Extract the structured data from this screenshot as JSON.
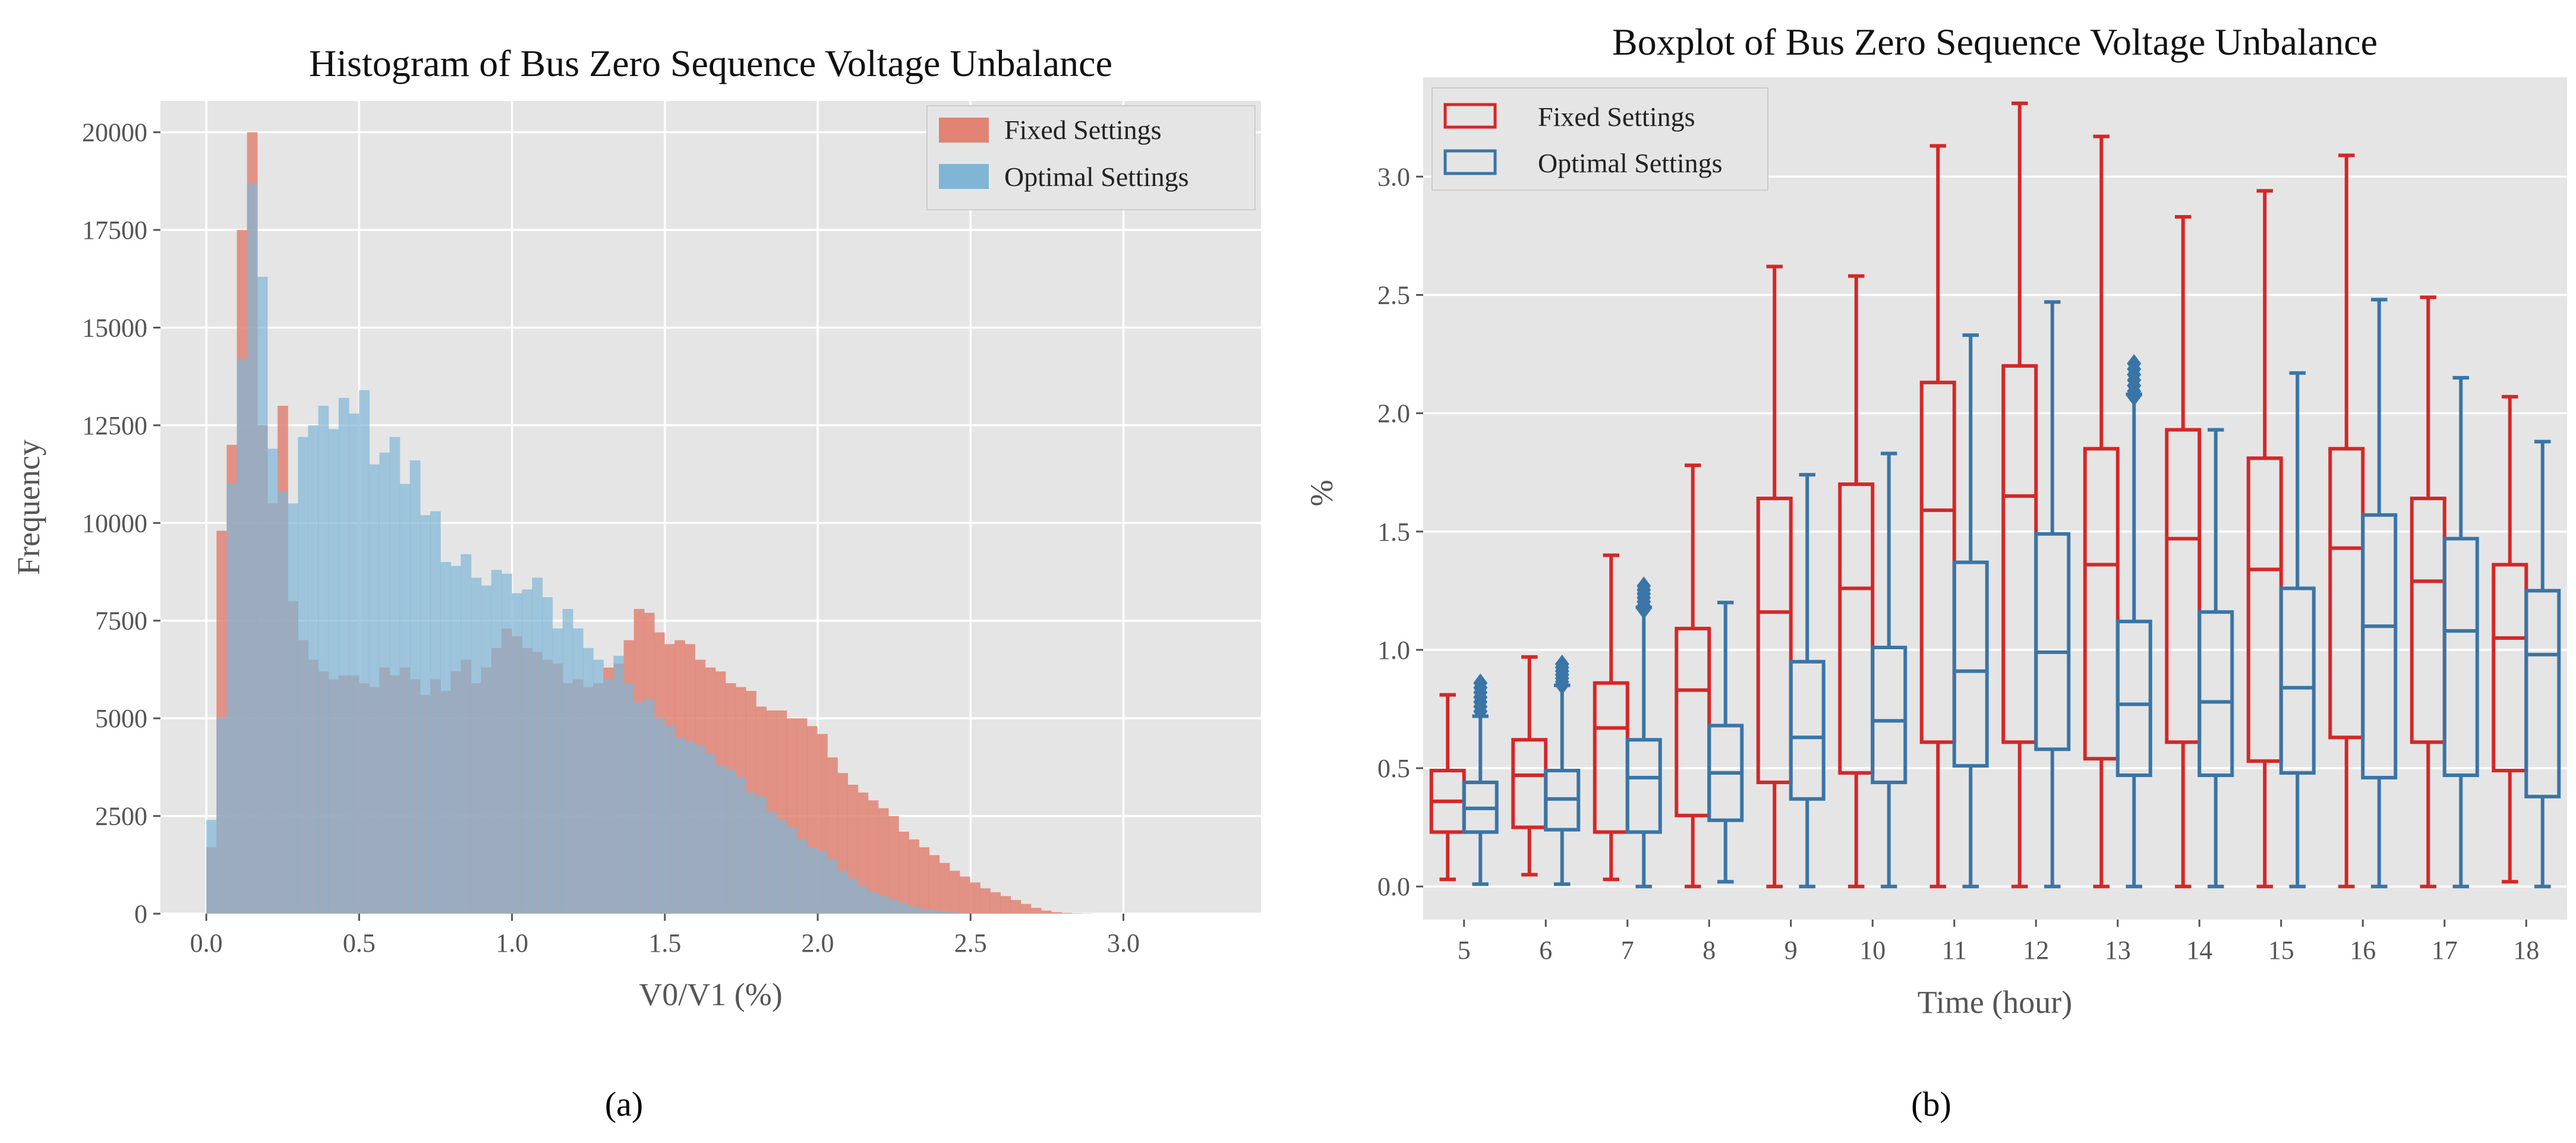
{
  "chart_data": [
    {
      "type": "histogram",
      "title": "Histogram of Bus Zero Sequence Voltage Unbalance",
      "xlabel": "V0/V1 (%)",
      "ylabel": "Frequency",
      "xlim": [
        -0.15,
        3.45
      ],
      "ylim": [
        0,
        20800
      ],
      "xticks": [
        "0.0",
        "0.5",
        "1.0",
        "1.5",
        "2.0",
        "2.5",
        "3.0"
      ],
      "yticks": [
        "0",
        "2500",
        "5000",
        "7500",
        "10000",
        "12500",
        "15000",
        "17500",
        "20000"
      ],
      "legend_position": "top-right",
      "bin_start": 0.0,
      "bin_width": 0.0333,
      "series": [
        {
          "name": "Fixed Settings",
          "color": "#e28474",
          "values": [
            1700,
            9800,
            12000,
            17500,
            20000,
            12500,
            10500,
            13000,
            8000,
            7000,
            6500,
            6200,
            6000,
            6100,
            6100,
            5900,
            5800,
            6300,
            6100,
            6300,
            6000,
            5600,
            6000,
            5700,
            6200,
            6500,
            5900,
            6300,
            6800,
            7300,
            7100,
            6800,
            6700,
            6500,
            6400,
            5900,
            6000,
            5800,
            5900,
            6300,
            6400,
            7000,
            7800,
            7700,
            7200,
            6900,
            7000,
            6900,
            6500,
            6300,
            6200,
            5900,
            5800,
            5700,
            5300,
            5200,
            5200,
            5000,
            5000,
            4800,
            4600,
            4000,
            3600,
            3300,
            3100,
            2900,
            2700,
            2500,
            2100,
            1900,
            1700,
            1500,
            1300,
            1100,
            950,
            800,
            650,
            550,
            450,
            350,
            250,
            150,
            80,
            40,
            20,
            10,
            5
          ]
        },
        {
          "name": "Optimal Settings",
          "color": "#7fb6d6",
          "values": [
            2400,
            5000,
            11000,
            14200,
            18700,
            16300,
            11900,
            10800,
            10500,
            12200,
            12500,
            13000,
            12400,
            13200,
            12800,
            13400,
            11500,
            11800,
            12200,
            11000,
            11600,
            10200,
            10300,
            9000,
            8900,
            9200,
            8600,
            8400,
            8800,
            8700,
            8200,
            8300,
            8600,
            8100,
            7300,
            7800,
            7300,
            6800,
            6500,
            6000,
            6600,
            5900,
            5400,
            5500,
            5000,
            4800,
            4500,
            4400,
            4300,
            4100,
            3800,
            3700,
            3500,
            3100,
            3000,
            2600,
            2400,
            2200,
            1900,
            1700,
            1600,
            1400,
            1100,
            900,
            700,
            550,
            450,
            350,
            250,
            180,
            120,
            80,
            50,
            30,
            20,
            10,
            5,
            2,
            1,
            0,
            0,
            0,
            0,
            0,
            0,
            0,
            0
          ]
        }
      ]
    },
    {
      "type": "boxplot",
      "title": "Boxplot of Bus Zero Sequence Voltage Unbalance",
      "xlabel": "Time (hour)",
      "ylabel": "%",
      "ylim": [
        -0.14,
        3.42
      ],
      "categories": [
        "5",
        "6",
        "7",
        "8",
        "9",
        "10",
        "11",
        "12",
        "13",
        "14",
        "15",
        "16",
        "17",
        "18"
      ],
      "yticks": [
        "0.0",
        "0.5",
        "1.0",
        "1.5",
        "2.0",
        "2.5",
        "3.0"
      ],
      "legend_position": "top-left",
      "series": [
        {
          "name": "Fixed Settings",
          "color": "#d62728",
          "boxes": [
            {
              "min": 0.03,
              "q1": 0.23,
              "median": 0.36,
              "q3": 0.49,
              "max": 0.81
            },
            {
              "min": 0.05,
              "q1": 0.25,
              "median": 0.47,
              "q3": 0.62,
              "max": 0.97
            },
            {
              "min": 0.03,
              "q1": 0.23,
              "median": 0.67,
              "q3": 0.86,
              "max": 1.4
            },
            {
              "min": 0.0,
              "q1": 0.3,
              "median": 0.83,
              "q3": 1.09,
              "max": 1.78
            },
            {
              "min": 0.0,
              "q1": 0.44,
              "median": 1.16,
              "q3": 1.64,
              "max": 2.62
            },
            {
              "min": 0.0,
              "q1": 0.48,
              "median": 1.26,
              "q3": 1.7,
              "max": 2.58
            },
            {
              "min": 0.0,
              "q1": 0.61,
              "median": 1.59,
              "q3": 2.13,
              "max": 3.13
            },
            {
              "min": 0.0,
              "q1": 0.61,
              "median": 1.65,
              "q3": 2.2,
              "max": 3.31
            },
            {
              "min": 0.0,
              "q1": 0.54,
              "median": 1.36,
              "q3": 1.85,
              "max": 3.17
            },
            {
              "min": 0.0,
              "q1": 0.61,
              "median": 1.47,
              "q3": 1.93,
              "max": 2.83
            },
            {
              "min": 0.0,
              "q1": 0.53,
              "median": 1.34,
              "q3": 1.81,
              "max": 2.94
            },
            {
              "min": 0.0,
              "q1": 0.63,
              "median": 1.43,
              "q3": 1.85,
              "max": 3.09
            },
            {
              "min": 0.0,
              "q1": 0.61,
              "median": 1.29,
              "q3": 1.64,
              "max": 2.49
            },
            {
              "min": 0.02,
              "q1": 0.49,
              "median": 1.05,
              "q3": 1.36,
              "max": 2.07
            }
          ]
        },
        {
          "name": "Optimal Settings",
          "color": "#3a75a8",
          "boxes": [
            {
              "min": 0.01,
              "q1": 0.23,
              "median": 0.33,
              "q3": 0.44,
              "max": 0.72,
              "outlier_span": [
                0.74,
                0.86
              ]
            },
            {
              "min": 0.01,
              "q1": 0.24,
              "median": 0.37,
              "q3": 0.49,
              "max": 0.85,
              "outlier_span": [
                0.85,
                0.94
              ]
            },
            {
              "min": 0.0,
              "q1": 0.23,
              "median": 0.46,
              "q3": 0.62,
              "max": 1.18,
              "outlier_span": [
                1.17,
                1.27
              ]
            },
            {
              "min": 0.02,
              "q1": 0.28,
              "median": 0.48,
              "q3": 0.68,
              "max": 1.2
            },
            {
              "min": 0.0,
              "q1": 0.37,
              "median": 0.63,
              "q3": 0.95,
              "max": 1.74
            },
            {
              "min": 0.0,
              "q1": 0.44,
              "median": 0.7,
              "q3": 1.01,
              "max": 1.83
            },
            {
              "min": 0.0,
              "q1": 0.51,
              "median": 0.91,
              "q3": 1.37,
              "max": 2.33
            },
            {
              "min": 0.0,
              "q1": 0.58,
              "median": 0.99,
              "q3": 1.49,
              "max": 2.47
            },
            {
              "min": 0.0,
              "q1": 0.47,
              "median": 0.77,
              "q3": 1.12,
              "max": 2.08,
              "outlier_span": [
                2.07,
                2.21
              ]
            },
            {
              "min": 0.0,
              "q1": 0.47,
              "median": 0.78,
              "q3": 1.16,
              "max": 1.93
            },
            {
              "min": 0.0,
              "q1": 0.48,
              "median": 0.84,
              "q3": 1.26,
              "max": 2.17
            },
            {
              "min": 0.0,
              "q1": 0.46,
              "median": 1.1,
              "q3": 1.57,
              "max": 2.48
            },
            {
              "min": 0.0,
              "q1": 0.47,
              "median": 1.08,
              "q3": 1.47,
              "max": 2.15
            },
            {
              "min": 0.0,
              "q1": 0.38,
              "median": 0.98,
              "q3": 1.25,
              "max": 1.88
            }
          ]
        }
      ]
    }
  ],
  "captions": {
    "a": "(a)",
    "b": "(b)"
  }
}
